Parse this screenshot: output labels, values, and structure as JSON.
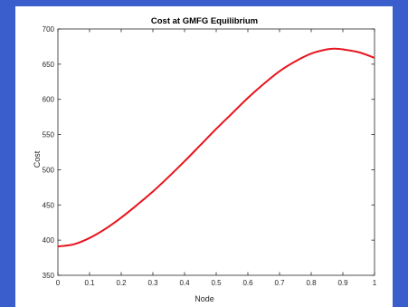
{
  "chart_data": {
    "type": "line",
    "title": "Cost at GMFG Equilibrium",
    "xlabel": "Node",
    "ylabel": "Cost",
    "xlim": [
      0,
      1
    ],
    "ylim": [
      350,
      700
    ],
    "xticks": [
      0,
      0.1,
      0.2,
      0.3,
      0.4,
      0.5,
      0.6,
      0.7,
      0.8,
      0.9,
      1
    ],
    "xtick_labels": [
      "0",
      "0.1",
      "0.2",
      "0.3",
      "0.4",
      "0.5",
      "0.6",
      "0.7",
      "0.8",
      "0.9",
      "1"
    ],
    "yticks": [
      350,
      400,
      450,
      500,
      550,
      600,
      650,
      700
    ],
    "ytick_labels": [
      "350",
      "400",
      "450",
      "500",
      "550",
      "600",
      "650",
      "700"
    ],
    "grid": false,
    "legend": "none",
    "series": [
      {
        "color": "#e8141e",
        "x": [
          0,
          0.05,
          0.1,
          0.15,
          0.2,
          0.25,
          0.3,
          0.35,
          0.4,
          0.45,
          0.5,
          0.55,
          0.6,
          0.65,
          0.7,
          0.75,
          0.8,
          0.85,
          0.875,
          0.9,
          0.95,
          1
        ],
        "y": [
          391,
          394,
          403,
          416,
          432,
          450,
          469,
          490,
          512,
          535,
          558,
          580,
          602,
          622,
          640,
          654,
          665,
          671,
          672,
          671,
          667,
          659
        ]
      }
    ]
  }
}
